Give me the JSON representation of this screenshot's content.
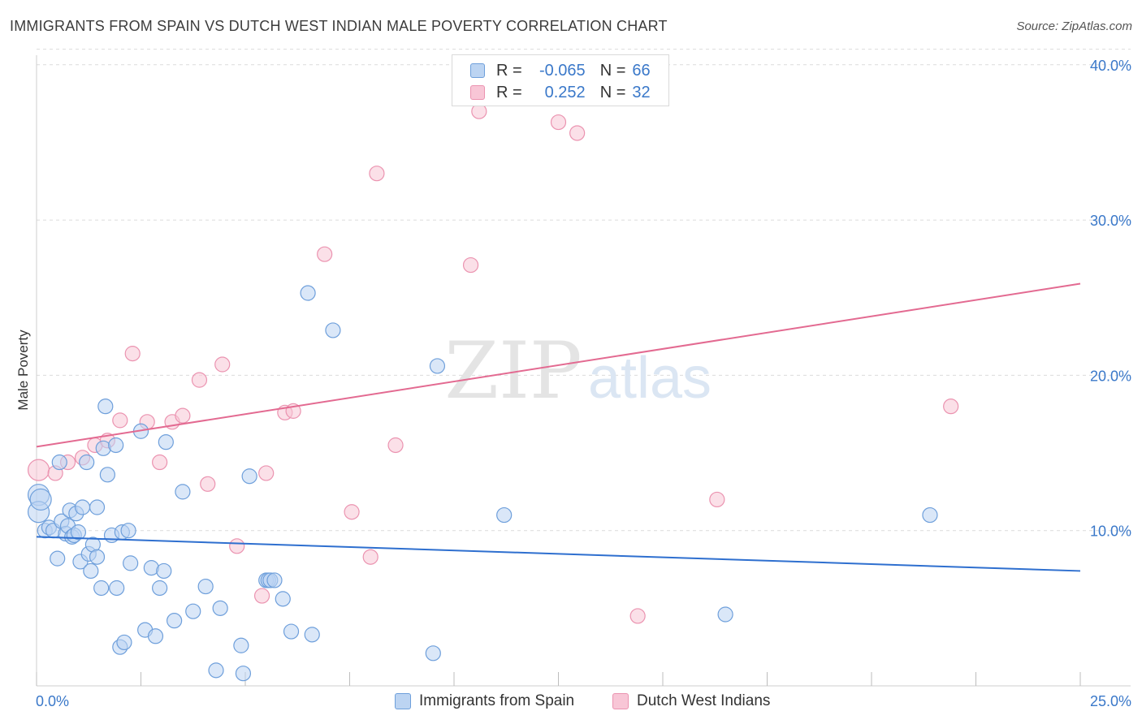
{
  "title": "IMMIGRANTS FROM SPAIN VS DUTCH WEST INDIAN MALE POVERTY CORRELATION CHART",
  "source": "Source: ZipAtlas.com",
  "watermark": {
    "zip": "ZIP",
    "atlas": "atlas"
  },
  "legend": {
    "row1": {
      "r_label": "R =",
      "r_value": "-0.065",
      "n_label": "N =",
      "n_value": "66"
    },
    "row2": {
      "r_label": "R =",
      "r_value": "0.252",
      "n_label": "N =",
      "n_value": "32"
    }
  },
  "colors": {
    "blue_fill": "#bcd4f2",
    "blue_stroke": "#6e9fdb",
    "blue_line": "#2e6fcf",
    "pink_fill": "#f8c6d6",
    "pink_stroke": "#eb93b0",
    "pink_line": "#e36a91",
    "tick_label": "#3a78c9",
    "grid": "#dcdcdc"
  },
  "chart_data": {
    "type": "scatter",
    "title": "IMMIGRANTS FROM SPAIN VS DUTCH WEST INDIAN MALE POVERTY CORRELATION CHART",
    "xlabel": "",
    "ylabel": "Male Poverty",
    "xlim": [
      0,
      25
    ],
    "ylim": [
      0,
      41
    ],
    "x_tick_labels": [
      "0.0%",
      "25.0%"
    ],
    "y_ticks": [
      10,
      20,
      30,
      40
    ],
    "y_tick_labels": [
      "10.0%",
      "20.0%",
      "30.0%",
      "40.0%"
    ],
    "grid": true,
    "legend_position": "bottom",
    "series": [
      {
        "name": "Immigrants from Spain",
        "r": -0.065,
        "n": 66,
        "trend": {
          "x": [
            0,
            25
          ],
          "y": [
            9.6,
            7.4
          ]
        },
        "points": [
          [
            0.05,
            12.3
          ],
          [
            0.05,
            11.2
          ],
          [
            0.2,
            10.0
          ],
          [
            0.3,
            10.2
          ],
          [
            0.4,
            10.0
          ],
          [
            0.5,
            8.2
          ],
          [
            0.55,
            14.4
          ],
          [
            0.6,
            10.6
          ],
          [
            0.7,
            9.8
          ],
          [
            0.75,
            10.3
          ],
          [
            0.8,
            11.3
          ],
          [
            0.85,
            9.6
          ],
          [
            0.9,
            9.7
          ],
          [
            0.95,
            11.1
          ],
          [
            1.0,
            9.9
          ],
          [
            1.05,
            8.0
          ],
          [
            1.1,
            11.5
          ],
          [
            1.2,
            14.4
          ],
          [
            1.25,
            8.5
          ],
          [
            1.3,
            7.4
          ],
          [
            1.35,
            9.1
          ],
          [
            1.45,
            11.5
          ],
          [
            1.45,
            8.3
          ],
          [
            1.55,
            6.3
          ],
          [
            1.6,
            15.3
          ],
          [
            1.65,
            18.0
          ],
          [
            1.7,
            13.6
          ],
          [
            1.8,
            9.7
          ],
          [
            1.9,
            15.5
          ],
          [
            1.92,
            6.3
          ],
          [
            2.0,
            2.5
          ],
          [
            2.05,
            9.9
          ],
          [
            2.1,
            2.8
          ],
          [
            2.2,
            10.0
          ],
          [
            2.25,
            7.9
          ],
          [
            2.5,
            16.4
          ],
          [
            2.6,
            3.6
          ],
          [
            2.75,
            7.6
          ],
          [
            2.85,
            3.2
          ],
          [
            2.95,
            6.3
          ],
          [
            3.05,
            7.4
          ],
          [
            3.1,
            15.7
          ],
          [
            3.3,
            4.2
          ],
          [
            3.5,
            12.5
          ],
          [
            3.75,
            4.8
          ],
          [
            4.05,
            6.4
          ],
          [
            4.3,
            1.0
          ],
          [
            4.4,
            5.0
          ],
          [
            4.9,
            2.6
          ],
          [
            4.95,
            0.8
          ],
          [
            5.1,
            13.5
          ],
          [
            5.5,
            6.8
          ],
          [
            5.55,
            6.8
          ],
          [
            5.6,
            6.8
          ],
          [
            5.7,
            6.8
          ],
          [
            5.9,
            5.6
          ],
          [
            6.1,
            3.5
          ],
          [
            6.5,
            25.3
          ],
          [
            6.6,
            3.3
          ],
          [
            7.1,
            22.9
          ],
          [
            9.5,
            2.1
          ],
          [
            9.6,
            20.6
          ],
          [
            11.2,
            11.0
          ],
          [
            16.5,
            4.6
          ],
          [
            21.4,
            11.0
          ],
          [
            0.1,
            12.0
          ]
        ]
      },
      {
        "name": "Dutch West Indians",
        "r": 0.252,
        "n": 32,
        "trend": {
          "x": [
            0,
            25
          ],
          "y": [
            15.4,
            25.9
          ]
        },
        "points": [
          [
            0.05,
            13.9
          ],
          [
            0.45,
            13.7
          ],
          [
            0.75,
            14.4
          ],
          [
            1.1,
            14.7
          ],
          [
            1.4,
            15.5
          ],
          [
            1.7,
            15.8
          ],
          [
            2.0,
            17.1
          ],
          [
            2.3,
            21.4
          ],
          [
            2.65,
            17.0
          ],
          [
            2.95,
            14.4
          ],
          [
            3.25,
            17.0
          ],
          [
            3.5,
            17.4
          ],
          [
            3.9,
            19.7
          ],
          [
            4.1,
            13.0
          ],
          [
            4.45,
            20.7
          ],
          [
            4.8,
            9.0
          ],
          [
            5.4,
            5.8
          ],
          [
            5.5,
            13.7
          ],
          [
            5.95,
            17.6
          ],
          [
            6.15,
            17.7
          ],
          [
            6.9,
            27.8
          ],
          [
            7.55,
            11.2
          ],
          [
            8.0,
            8.3
          ],
          [
            8.15,
            33.0
          ],
          [
            8.6,
            15.5
          ],
          [
            10.4,
            27.1
          ],
          [
            10.6,
            37.0
          ],
          [
            12.5,
            36.3
          ],
          [
            12.95,
            35.6
          ],
          [
            14.4,
            4.5
          ],
          [
            16.3,
            12.0
          ],
          [
            21.9,
            18.0
          ]
        ]
      }
    ]
  },
  "bottom_legend": {
    "series1": "Immigrants from Spain",
    "series2": "Dutch West Indians"
  }
}
